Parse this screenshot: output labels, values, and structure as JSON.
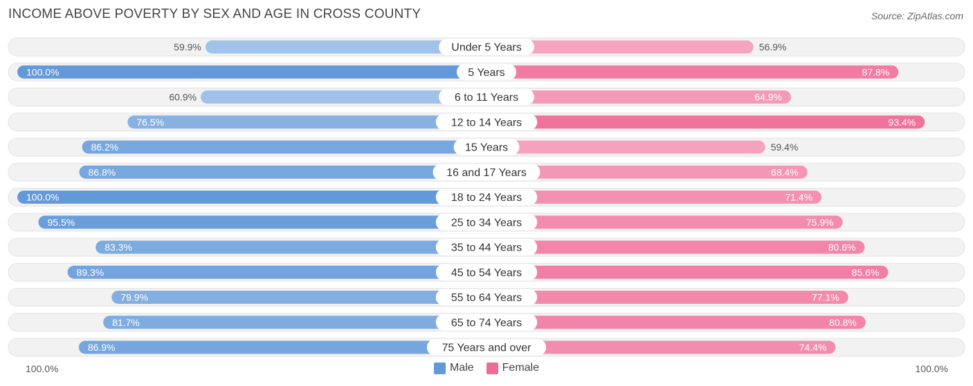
{
  "header": {
    "title": "INCOME ABOVE POVERTY BY SEX AND AGE IN CROSS COUNTY",
    "source": "Source: ZipAtlas.com"
  },
  "axis": {
    "left_label": "100.0%",
    "right_label": "100.0%"
  },
  "legend": {
    "male": "Male",
    "female": "Female"
  },
  "colors": {
    "male_light": "#a9c7ec",
    "male_dark": "#6399d8",
    "female_light": "#f6a8c2",
    "female_dark": "#ef6a96",
    "row_bg": "#f2f2f2",
    "row_border": "#e2e2e2"
  },
  "chart_data": {
    "type": "bar",
    "orientation": "horizontal-diverging",
    "title": "INCOME ABOVE POVERTY BY SEX AND AGE IN CROSS COUNTY",
    "xlim": [
      0,
      100
    ],
    "categories": [
      "Under 5 Years",
      "5 Years",
      "6 to 11 Years",
      "12 to 14 Years",
      "15 Years",
      "16 and 17 Years",
      "18 to 24 Years",
      "25 to 34 Years",
      "35 to 44 Years",
      "45 to 54 Years",
      "55 to 64 Years",
      "65 to 74 Years",
      "75 Years and over"
    ],
    "series": [
      {
        "name": "Male",
        "values": [
          59.9,
          100.0,
          60.9,
          76.5,
          86.2,
          86.8,
          100.0,
          95.5,
          83.3,
          89.3,
          79.9,
          81.7,
          86.9
        ],
        "labels": [
          "59.9%",
          "100.0%",
          "60.9%",
          "76.5%",
          "86.2%",
          "86.8%",
          "100.0%",
          "95.5%",
          "83.3%",
          "89.3%",
          "79.9%",
          "81.7%",
          "86.9%"
        ]
      },
      {
        "name": "Female",
        "values": [
          56.9,
          87.8,
          64.9,
          93.4,
          59.4,
          68.4,
          71.4,
          75.9,
          80.6,
          85.6,
          77.1,
          80.8,
          74.4
        ],
        "labels": [
          "56.9%",
          "87.8%",
          "64.9%",
          "93.4%",
          "59.4%",
          "68.4%",
          "71.4%",
          "75.9%",
          "80.6%",
          "85.6%",
          "77.1%",
          "80.8%",
          "74.4%"
        ]
      }
    ]
  }
}
